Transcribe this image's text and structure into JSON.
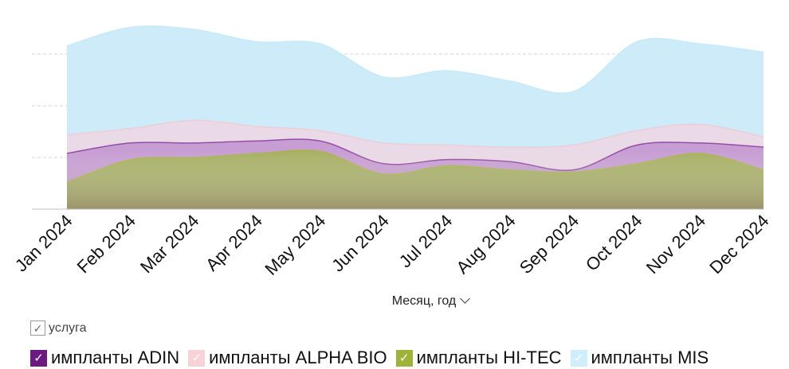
{
  "chart_data": {
    "type": "area",
    "categories": [
      "Jan 2024",
      "Feb 2024",
      "Mar 2024",
      "Apr 2024",
      "May 2024",
      "Jun 2024",
      "Jul 2024",
      "Aug 2024",
      "Sep 2024",
      "Oct 2024",
      "Nov 2024",
      "Dec 2024"
    ],
    "ylim": [
      0,
      100
    ],
    "grid": true,
    "xlabel": "Месяц, год",
    "ylabel": "",
    "series": [
      {
        "name": "импланты ADIN",
        "color": "#7a1f8f",
        "fill": "#c79ed3",
        "values": [
          14,
          8,
          7,
          6,
          5,
          5,
          3,
          4,
          1,
          9,
          5,
          11
        ]
      },
      {
        "name": "импланты ALPHA BIO",
        "color": "#f2c6cc",
        "fill": "#ead9e6",
        "values": [
          9,
          7,
          11,
          7,
          5,
          10,
          7,
          7,
          12,
          7,
          9,
          5
        ]
      },
      {
        "name": "импланты HI-TEC",
        "color": "#a8b83a",
        "fill": "#a7b064",
        "values": [
          13,
          24,
          25,
          27,
          28,
          17,
          21,
          19,
          18,
          22,
          27,
          19
        ]
      },
      {
        "name": "импланты MIS",
        "color": "#bfe8f7",
        "fill": "#cdebf8",
        "values": [
          43,
          49,
          44,
          41,
          42,
          32,
          36,
          32,
          26,
          43,
          39,
          41
        ]
      }
    ]
  },
  "group_toggle": {
    "label": "услуга",
    "check": "✓"
  },
  "legend": {
    "check": "✓"
  }
}
